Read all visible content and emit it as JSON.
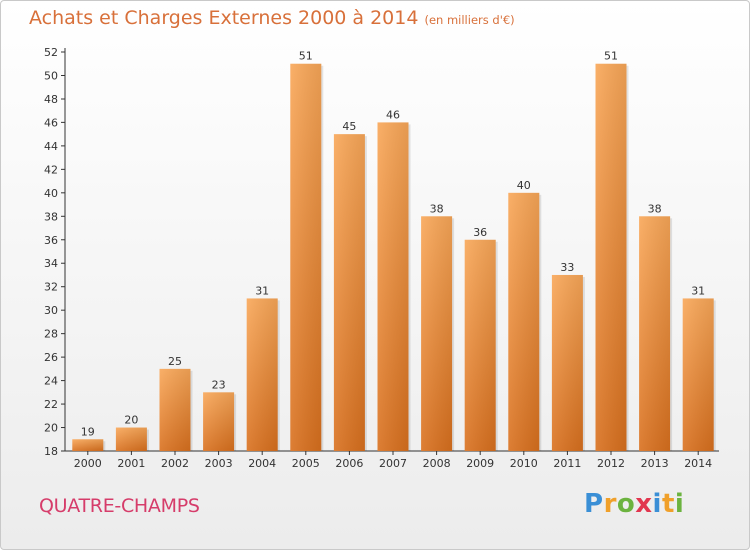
{
  "header": {
    "title": "Achats et Charges Externes 2000 à 2014",
    "subtitle": "(en milliers d'€)"
  },
  "footer": {
    "commune": "QUATRE-CHAMPS",
    "logo_letters": [
      {
        "ch": "P",
        "color": "#3a8fd6"
      },
      {
        "ch": "r",
        "color": "#f0a02a"
      },
      {
        "ch": "o",
        "color": "#6cb33f"
      },
      {
        "ch": "x",
        "color": "#e2364f"
      },
      {
        "ch": "i",
        "color": "#3a8fd6"
      },
      {
        "ch": "t",
        "color": "#f0a02a"
      },
      {
        "ch": "i",
        "color": "#6cb33f"
      }
    ]
  },
  "chart_data": {
    "type": "bar",
    "title": "Achats et Charges Externes 2000 à 2014",
    "subtitle": "(en milliers d'€)",
    "categories": [
      "2000",
      "2001",
      "2002",
      "2003",
      "2004",
      "2005",
      "2006",
      "2007",
      "2008",
      "2009",
      "2010",
      "2011",
      "2012",
      "2013",
      "2014"
    ],
    "values": [
      19,
      20,
      25,
      23,
      31,
      51,
      45,
      46,
      38,
      36,
      40,
      33,
      51,
      38,
      31
    ],
    "ylim": [
      18,
      52
    ],
    "yticks": [
      18,
      20,
      22,
      24,
      26,
      28,
      30,
      32,
      34,
      36,
      38,
      40,
      42,
      44,
      46,
      48,
      50,
      52
    ],
    "grid": false,
    "data_labels": true,
    "bar_color": "#f2923c"
  }
}
